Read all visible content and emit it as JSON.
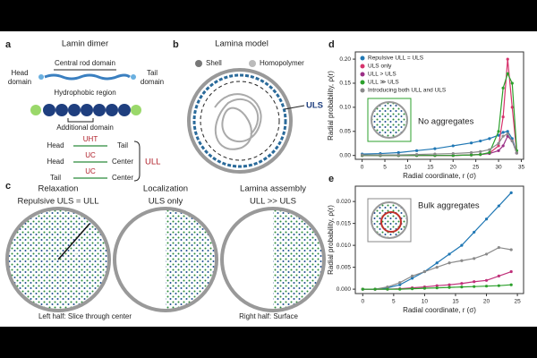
{
  "panels": {
    "a": {
      "label": "a",
      "title": "Lamin dimer",
      "rod": "Central rod domain",
      "head": [
        "Head",
        "domain"
      ],
      "tail": [
        "Tail",
        "domain"
      ],
      "hydrophobic": "Hydrophobic region",
      "additional": "Additional domain",
      "interactions": [
        [
          "Head",
          "UHT",
          "Tail"
        ],
        [
          "Head",
          "UC",
          "Center"
        ],
        [
          "Tail",
          "UC",
          "Center"
        ]
      ],
      "total": "ULL"
    },
    "b": {
      "label": "b",
      "title": "Lamina model",
      "legend": [
        "Shell",
        "Homopolymer"
      ],
      "interaction": "ULS"
    },
    "c": {
      "label": "c",
      "titles": [
        "Relaxation",
        "Localization",
        "Lamina assembly"
      ],
      "subtitles": [
        "Repulsive ULS = ULL",
        "ULS only",
        "ULL >> ULS"
      ],
      "radius": "R",
      "notes": [
        "Left half: Slice through center",
        "Right half: Surface"
      ]
    }
  },
  "chart_data": [
    {
      "type": "line",
      "label": "d",
      "xlabel": "Radial coordinate, r (σ)",
      "ylabel": "Radial probability, ρ(r)",
      "annotation": "No aggregates",
      "x": [
        0,
        4,
        8,
        12,
        16,
        20,
        24,
        26,
        28,
        30,
        31,
        32,
        33,
        34
      ],
      "xlim": [
        -1.5,
        35.5
      ],
      "xticks": [
        0,
        5,
        10,
        15,
        20,
        25,
        30,
        35
      ],
      "ylim": [
        -0.008,
        0.215
      ],
      "yticks": [
        {
          "value": 0,
          "label": "0.00"
        },
        {
          "value": 0.05,
          "label": "0.05"
        },
        {
          "value": 0.1,
          "label": "0.10"
        },
        {
          "value": 0.15,
          "label": "0.15"
        },
        {
          "value": 0.2,
          "label": "0.20"
        }
      ],
      "series": [
        {
          "name": "Repulsive ULL = ULS",
          "color": "#1f77b4",
          "values": [
            0.003,
            0.004,
            0.006,
            0.01,
            0.014,
            0.02,
            0.026,
            0.03,
            0.035,
            0.042,
            0.048,
            0.05,
            0.035,
            0.005
          ]
        },
        {
          "name": "ULS only",
          "color": "#d6336c",
          "values": [
            0,
            0,
            0,
            0,
            0,
            0,
            0.001,
            0.002,
            0.005,
            0.02,
            0.08,
            0.2,
            0.1,
            0.005
          ]
        },
        {
          "name": "ULL > ULS",
          "color": "#9b2f86",
          "values": [
            0,
            0,
            0,
            0,
            0,
            0,
            0.001,
            0.002,
            0.004,
            0.01,
            0.02,
            0.04,
            0.03,
            0.005
          ]
        },
        {
          "name": "ULL ≫ ULS",
          "color": "#2ca02c",
          "values": [
            0,
            0,
            0,
            0,
            0,
            0,
            0.001,
            0.002,
            0.006,
            0.05,
            0.14,
            0.17,
            0.15,
            0.01
          ]
        },
        {
          "name": "Introducing both ULL and ULS",
          "color": "#8a8a8a",
          "values": [
            0.001,
            0.001,
            0.001,
            0.002,
            0.003,
            0.004,
            0.006,
            0.008,
            0.012,
            0.025,
            0.04,
            0.045,
            0.03,
            0.005
          ]
        }
      ]
    },
    {
      "type": "line",
      "label": "e",
      "xlabel": "Radial coordinate, r (σ)",
      "ylabel": "Radial probability, ρ(r)",
      "annotation": "Bulk aggregates",
      "x": [
        0,
        2,
        4,
        6,
        8,
        10,
        12,
        14,
        16,
        18,
        20,
        22,
        24
      ],
      "xlim": [
        -1.2,
        26
      ],
      "xticks": [
        0,
        5,
        10,
        15,
        20,
        25
      ],
      "ylim": [
        -0.001,
        0.0235
      ],
      "yticks": [
        {
          "value": 0,
          "label": "0.000"
        },
        {
          "value": 0.005,
          "label": "0.005"
        },
        {
          "value": 0.01,
          "label": "0.010"
        },
        {
          "value": 0.015,
          "label": "0.015"
        },
        {
          "value": 0.02,
          "label": "0.020"
        }
      ],
      "series": [
        {
          "color": "#1f77b4",
          "values": [
            0,
            0,
            0.0003,
            0.001,
            0.0025,
            0.004,
            0.006,
            0.008,
            0.01,
            0.013,
            0.016,
            0.019,
            0.022
          ]
        },
        {
          "color": "#8a8a8a",
          "values": [
            0,
            0,
            0.0005,
            0.0015,
            0.003,
            0.004,
            0.005,
            0.006,
            0.0065,
            0.007,
            0.008,
            0.0095,
            0.009
          ]
        },
        {
          "color": "#c0307a",
          "values": [
            0,
            0,
            0,
            0.0001,
            0.0003,
            0.0005,
            0.0008,
            0.001,
            0.0013,
            0.0017,
            0.002,
            0.003,
            0.004
          ]
        },
        {
          "color": "#2ca02c",
          "values": [
            0,
            0,
            0,
            0,
            0.0001,
            0.0002,
            0.0003,
            0.0004,
            0.0005,
            0.0006,
            0.0007,
            0.0008,
            0.001
          ]
        }
      ]
    }
  ]
}
